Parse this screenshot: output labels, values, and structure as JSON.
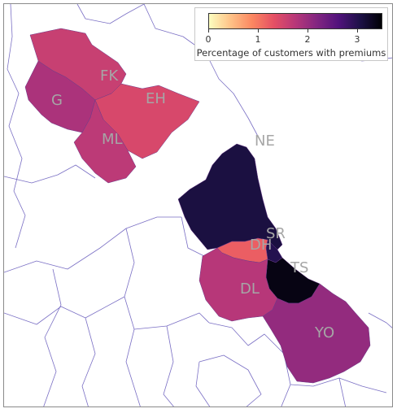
{
  "colors": {
    "scale_stops": [
      "#fcfdbf",
      "#fec287",
      "#fb8761",
      "#e55064",
      "#b73779",
      "#822681",
      "#51127c",
      "#1d1147",
      "#000004"
    ],
    "boundary": "#7a6fc4"
  },
  "legend": {
    "title": "Percentage of customers with premiums",
    "ticks": [
      "0",
      "1",
      "2",
      "3"
    ],
    "range": [
      0,
      3.5
    ]
  },
  "regions": [
    {
      "code": "FK",
      "value": 1.6
    },
    {
      "code": "EH",
      "value": 1.45
    },
    {
      "code": "G",
      "value": 1.85
    },
    {
      "code": "ML",
      "value": 1.7
    },
    {
      "code": "NE",
      "value": 3.1
    },
    {
      "code": "SR",
      "value": 3.0
    },
    {
      "code": "DH",
      "value": 1.2
    },
    {
      "code": "TS",
      "value": 3.4
    },
    {
      "code": "DL",
      "value": 1.75
    },
    {
      "code": "YO",
      "value": 2.05
    }
  ]
}
